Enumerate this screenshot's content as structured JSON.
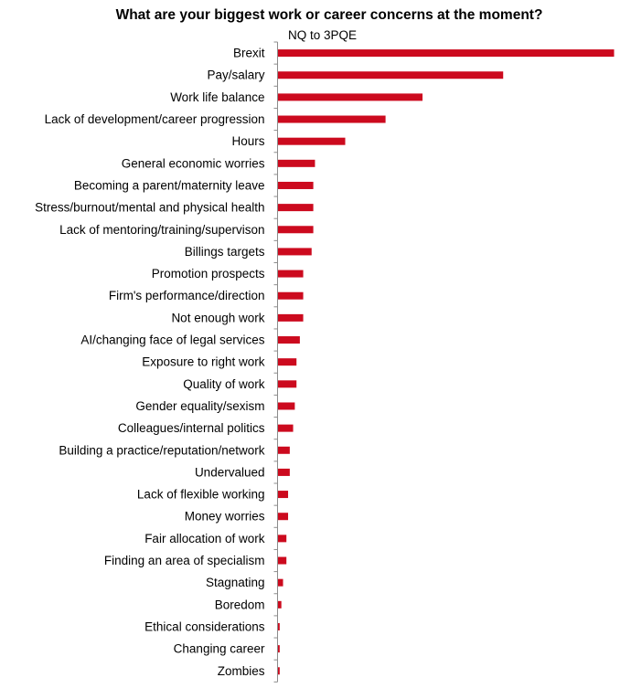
{
  "chart_data": {
    "type": "bar",
    "orientation": "horizontal",
    "title": "What are your biggest work or career concerns at the moment?",
    "subtitle": "NQ to 3PQE",
    "categories": [
      "Brexit",
      "Pay/salary",
      "Work life balance",
      "Lack of development/career progression",
      "Hours",
      "General economic worries",
      "Becoming a parent/maternity leave",
      "Stress/burnout/mental and physical health",
      "Lack of mentoring/training/supervison",
      "Billings targets",
      "Promotion prospects",
      "Firm's performance/direction",
      "Not enough work",
      "AI/changing face of legal services",
      "Exposure to right work",
      "Quality of work",
      "Gender equality/sexism",
      "Colleagues/internal politics",
      "Building a practice/reputation/network",
      "Undervalued",
      "Lack of flexible working",
      "Money worries",
      "Fair allocation of work",
      "Finding an area of specialism",
      "Stagnating",
      "Boredom",
      "Ethical considerations",
      "Changing career",
      "Zombies"
    ],
    "values": [
      100,
      67,
      43,
      32,
      20,
      11,
      10.5,
      10.5,
      10.5,
      10,
      7.5,
      7.5,
      7.5,
      6.5,
      5.5,
      5.5,
      5,
      4.5,
      3.5,
      3.5,
      3,
      3,
      2.5,
      2.5,
      1.5,
      1,
      0.5,
      0.5,
      0.5
    ],
    "xlim": [
      0,
      100
    ],
    "axes_visible": false,
    "grid": false,
    "legend": "none",
    "bar_color": "#cc0a1e"
  }
}
